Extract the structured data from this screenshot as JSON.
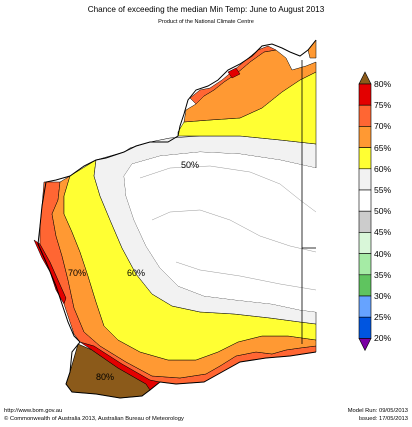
{
  "header": {
    "title": "Chance of exceeding the median Min Temp: June to August 2013",
    "subtitle": "Product of the National Climate Centre"
  },
  "map_labels": [
    {
      "id": "p50",
      "text": "50%"
    },
    {
      "id": "p60",
      "text": "60%"
    },
    {
      "id": "p70",
      "text": "70%"
    },
    {
      "id": "p80",
      "text": "80%"
    }
  ],
  "legend": {
    "colors": {
      "80": "#8b5a1a",
      "75": "#e30000",
      "70": "#ff6633",
      "65": "#ff9933",
      "60": "#ffff33",
      "55": "#f2f2f2",
      "50": "#ffffff",
      "45": "#cccccc",
      "40": "#d9f7d9",
      "35": "#a5eba5",
      "30": "#5fc45f",
      "25": "#66a3ff",
      "20": "#0055e0",
      "below": "#7a00a3"
    },
    "labels": [
      "80%",
      "75%",
      "70%",
      "65%",
      "60%",
      "55%",
      "50%",
      "45%",
      "40%",
      "35%",
      "30%",
      "25%",
      "20%"
    ]
  },
  "footer": {
    "left_line1": "http://www.bom.gov.au",
    "left_line2": "©  Commonwealth of Australia 2013, Australian Bureau of Meteorology",
    "right_line1": "Model Run: 09/05/2013",
    "right_line2": "Issued: 17/05/2013"
  }
}
